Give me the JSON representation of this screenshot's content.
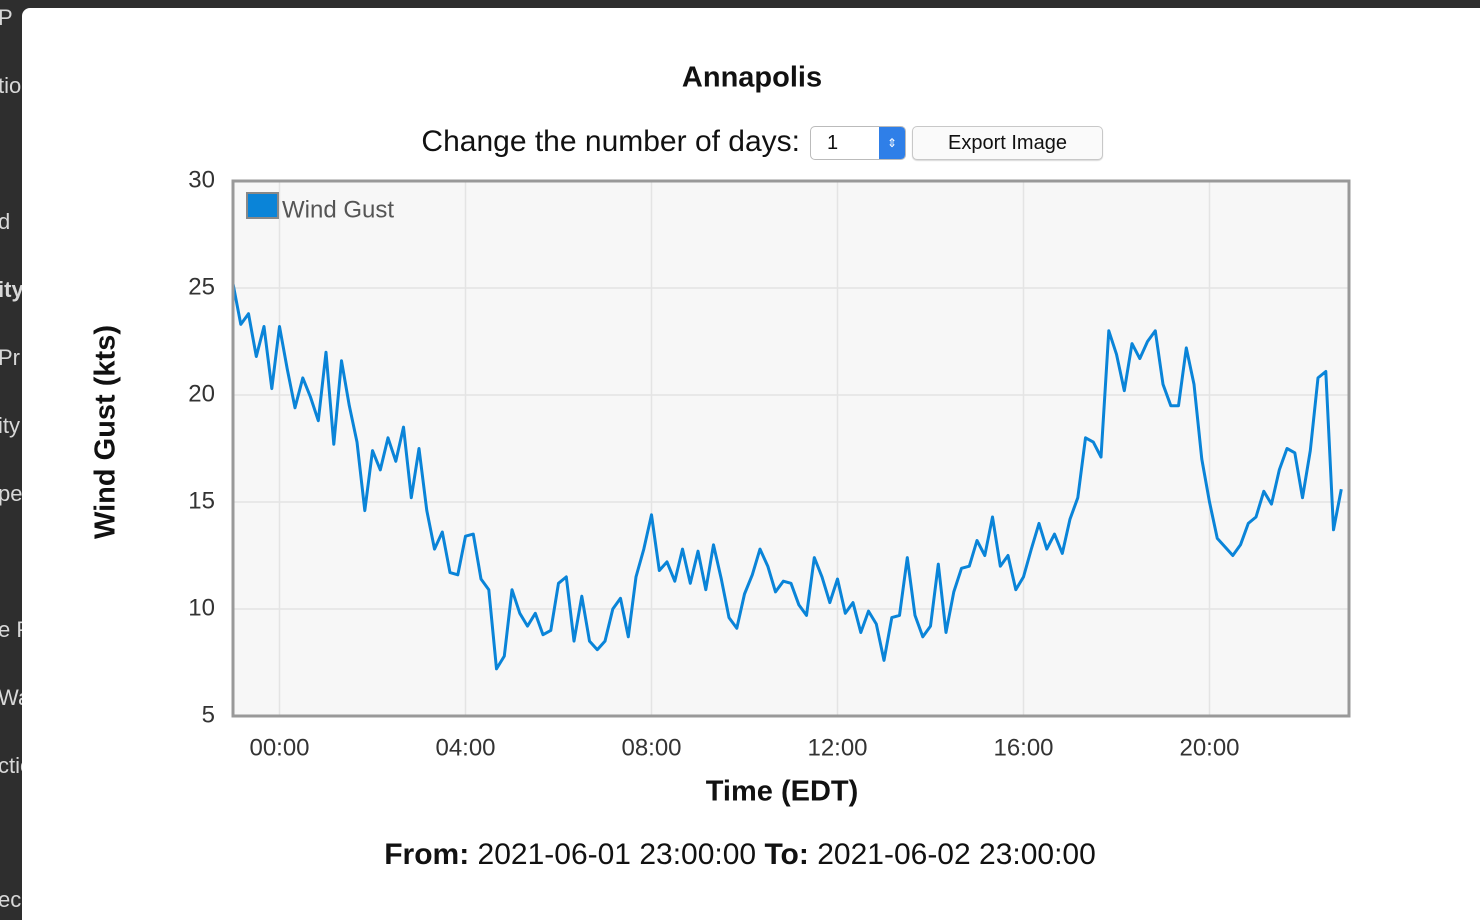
{
  "background": {
    "fragments": [
      "P",
      "tio",
      "d",
      "ity",
      "Pr",
      "ity",
      "pe",
      "e P",
      "Wa",
      "ctio",
      "ec"
    ]
  },
  "modal": {
    "title": "Annapolis",
    "days_label": "Change the number of days:",
    "days_value": "1",
    "export_button": "Export Image",
    "footer": {
      "from_label": "From:",
      "from": "2021-06-01 23:00:00",
      "to_label": "To:",
      "to": "2021-06-02 23:00:00"
    }
  },
  "chart_data": {
    "type": "line",
    "x_label": "Time (EDT)",
    "y_label": "Wind Gust (kts)",
    "xlim": [
      -60,
      1380
    ],
    "ylim": [
      5,
      30
    ],
    "xticks": [
      {
        "value": 0,
        "label": "00:00"
      },
      {
        "value": 240,
        "label": "04:00"
      },
      {
        "value": 480,
        "label": "08:00"
      },
      {
        "value": 720,
        "label": "12:00"
      },
      {
        "value": 960,
        "label": "16:00"
      },
      {
        "value": 1200,
        "label": "20:00"
      }
    ],
    "yticks": [
      5,
      10,
      15,
      20,
      25,
      30
    ],
    "grid": true,
    "legend": "upper left",
    "x": [
      -60,
      -50,
      -40,
      -30,
      -20,
      -10,
      0,
      10,
      20,
      30,
      40,
      50,
      60,
      70,
      80,
      90,
      100,
      110,
      120,
      130,
      140,
      150,
      160,
      170,
      180,
      190,
      200,
      210,
      220,
      230,
      240,
      250,
      260,
      270,
      280,
      290,
      300,
      310,
      320,
      330,
      340,
      350,
      360,
      370,
      380,
      390,
      400,
      410,
      420,
      430,
      440,
      450,
      460,
      470,
      480,
      490,
      500,
      510,
      520,
      530,
      540,
      550,
      560,
      570,
      580,
      590,
      600,
      610,
      620,
      630,
      640,
      650,
      660,
      670,
      680,
      690,
      700,
      710,
      720,
      730,
      740,
      750,
      760,
      770,
      780,
      790,
      800,
      810,
      820,
      830,
      840,
      850,
      860,
      870,
      880,
      890,
      900,
      910,
      920,
      930,
      940,
      950,
      960,
      970,
      980,
      990,
      1000,
      1010,
      1020,
      1030,
      1040,
      1050,
      1060,
      1070,
      1080,
      1090,
      1100,
      1110,
      1120,
      1130,
      1140,
      1150,
      1160,
      1170,
      1180,
      1190,
      1200,
      1210,
      1220,
      1230,
      1240,
      1250,
      1260,
      1270,
      1280,
      1290,
      1300,
      1310,
      1320,
      1330,
      1340,
      1350,
      1360,
      1370
    ],
    "series": [
      {
        "name": "Wind Gust",
        "color": "#0a84d8",
        "values": [
          25.2,
          23.3,
          23.8,
          21.8,
          23.2,
          20.3,
          23.2,
          21.2,
          19.4,
          20.8,
          19.9,
          18.8,
          22.0,
          17.7,
          21.6,
          19.5,
          17.8,
          14.6,
          17.4,
          16.5,
          18.0,
          16.9,
          18.5,
          15.2,
          17.5,
          14.6,
          12.8,
          13.6,
          11.7,
          11.6,
          13.4,
          13.5,
          11.4,
          10.9,
          7.2,
          7.8,
          10.9,
          9.8,
          9.2,
          9.8,
          8.8,
          9.0,
          11.2,
          11.5,
          8.5,
          10.6,
          8.5,
          8.1,
          8.5,
          10.0,
          10.5,
          8.7,
          11.5,
          12.8,
          14.4,
          11.8,
          12.2,
          11.3,
          12.8,
          11.2,
          12.7,
          10.9,
          13.0,
          11.4,
          9.6,
          9.1,
          10.7,
          11.6,
          12.8,
          12.0,
          10.8,
          11.3,
          11.2,
          10.2,
          9.7,
          12.4,
          11.5,
          10.3,
          11.4,
          9.8,
          10.3,
          8.9,
          9.9,
          9.3,
          7.6,
          9.6,
          9.7,
          12.4,
          9.7,
          8.7,
          9.2,
          12.1,
          8.9,
          10.8,
          11.9,
          12.0,
          13.2,
          12.5,
          14.3,
          12.0,
          12.5,
          10.9,
          11.5,
          12.8,
          14.0,
          12.8,
          13.5,
          12.6,
          14.2,
          15.2,
          18.0,
          17.8,
          17.1,
          23.0,
          21.9,
          20.2,
          22.4,
          21.7,
          22.5,
          23.0,
          20.5,
          19.5,
          19.5,
          22.2,
          20.5,
          17.0,
          15.0,
          13.3,
          12.9,
          12.5,
          13.0,
          14.0,
          14.3,
          15.5,
          14.9,
          16.5,
          17.5,
          17.3,
          15.2,
          17.4,
          20.8,
          21.1,
          13.7,
          15.6
        ]
      }
    ]
  }
}
